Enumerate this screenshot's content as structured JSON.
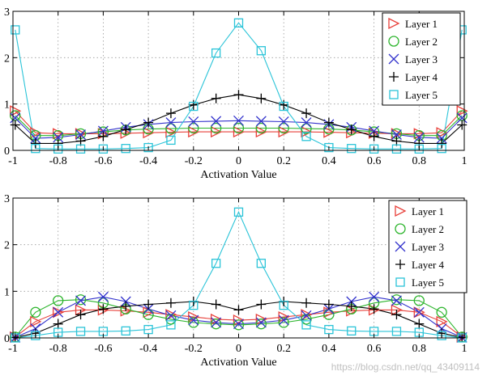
{
  "watermark": "https://blog.csdn.net/qq_43409114",
  "chart_data": [
    {
      "type": "line",
      "xlabel": "Activation Value",
      "ylabel": "",
      "xlim": [
        -1,
        1
      ],
      "ylim": [
        0,
        3
      ],
      "xticks": [
        -1,
        -0.8,
        -0.6,
        -0.4,
        -0.2,
        0,
        0.2,
        0.4,
        0.6,
        0.8,
        1
      ],
      "xtick_labels": [
        "-1",
        "-0.8",
        "-0.6",
        "-0.4",
        "-0.2",
        "0",
        "0.2",
        "0.4",
        "0.6",
        "0.8",
        "1"
      ],
      "yticks": [
        0,
        1,
        2,
        3
      ],
      "ytick_labels": [
        "0",
        "1",
        "2",
        "3"
      ],
      "grid": true,
      "legend_position": "top-right",
      "x": [
        -0.99,
        -0.9,
        -0.8,
        -0.7,
        -0.6,
        -0.5,
        -0.4,
        -0.3,
        -0.2,
        -0.1,
        0,
        0.1,
        0.2,
        0.3,
        0.4,
        0.5,
        0.6,
        0.7,
        0.8,
        0.9,
        0.99
      ],
      "series": [
        {
          "name": "Layer 1",
          "color": "#e8403a",
          "marker": "triangle-right",
          "values": [
            0.85,
            0.38,
            0.36,
            0.36,
            0.36,
            0.37,
            0.38,
            0.39,
            0.4,
            0.4,
            0.4,
            0.4,
            0.4,
            0.4,
            0.39,
            0.38,
            0.37,
            0.36,
            0.36,
            0.38,
            0.85
          ]
        },
        {
          "name": "Layer 2",
          "color": "#2db52d",
          "marker": "circle",
          "values": [
            0.75,
            0.32,
            0.32,
            0.36,
            0.4,
            0.44,
            0.46,
            0.47,
            0.48,
            0.48,
            0.48,
            0.48,
            0.48,
            0.47,
            0.46,
            0.44,
            0.4,
            0.36,
            0.32,
            0.32,
            0.75
          ]
        },
        {
          "name": "Layer 3",
          "color": "#3333cc",
          "marker": "x",
          "values": [
            0.7,
            0.26,
            0.28,
            0.34,
            0.42,
            0.5,
            0.56,
            0.6,
            0.62,
            0.63,
            0.64,
            0.63,
            0.62,
            0.6,
            0.56,
            0.5,
            0.42,
            0.34,
            0.28,
            0.26,
            0.7
          ]
        },
        {
          "name": "Layer 4",
          "color": "#000000",
          "marker": "plus",
          "values": [
            0.55,
            0.15,
            0.15,
            0.2,
            0.3,
            0.45,
            0.6,
            0.8,
            0.98,
            1.12,
            1.2,
            1.12,
            0.98,
            0.8,
            0.6,
            0.45,
            0.3,
            0.2,
            0.15,
            0.15,
            0.55
          ]
        },
        {
          "name": "Layer 5",
          "color": "#2bc4d8",
          "marker": "square",
          "values": [
            2.6,
            0.04,
            0.03,
            0.03,
            0.03,
            0.04,
            0.06,
            0.22,
            0.95,
            2.1,
            2.75,
            2.15,
            0.95,
            0.3,
            0.06,
            0.04,
            0.03,
            0.03,
            0.03,
            0.04,
            2.6
          ]
        }
      ]
    },
    {
      "type": "line",
      "xlabel": "Activation Value",
      "ylabel": "",
      "xlim": [
        -1,
        1
      ],
      "ylim": [
        0,
        3
      ],
      "xticks": [
        -1,
        -0.8,
        -0.6,
        -0.4,
        -0.2,
        0,
        0.2,
        0.4,
        0.6,
        0.8,
        1
      ],
      "xtick_labels": [
        "-1",
        "-0.8",
        "-0.6",
        "-0.4",
        "-0.2",
        "0",
        "0.2",
        "0.4",
        "0.6",
        "0.8",
        "1"
      ],
      "yticks": [
        0,
        1,
        2,
        3
      ],
      "ytick_labels": [
        "0",
        "1",
        "2",
        "3"
      ],
      "grid": true,
      "legend_position": "top-right",
      "x": [
        -0.99,
        -0.9,
        -0.8,
        -0.7,
        -0.6,
        -0.5,
        -0.4,
        -0.3,
        -0.2,
        -0.1,
        0,
        0.1,
        0.2,
        0.3,
        0.4,
        0.5,
        0.6,
        0.7,
        0.8,
        0.9,
        0.99
      ],
      "series": [
        {
          "name": "Layer 1",
          "color": "#e8403a",
          "marker": "triangle-right",
          "values": [
            0.02,
            0.35,
            0.55,
            0.6,
            0.6,
            0.58,
            0.55,
            0.5,
            0.45,
            0.4,
            0.38,
            0.4,
            0.45,
            0.5,
            0.55,
            0.58,
            0.6,
            0.6,
            0.55,
            0.35,
            0.02
          ]
        },
        {
          "name": "Layer 2",
          "color": "#2db52d",
          "marker": "circle",
          "values": [
            0.02,
            0.55,
            0.8,
            0.82,
            0.75,
            0.62,
            0.5,
            0.4,
            0.33,
            0.3,
            0.28,
            0.3,
            0.33,
            0.4,
            0.5,
            0.62,
            0.75,
            0.82,
            0.8,
            0.55,
            0.02
          ]
        },
        {
          "name": "Layer 3",
          "color": "#3333cc",
          "marker": "x",
          "values": [
            0.01,
            0.2,
            0.55,
            0.8,
            0.88,
            0.78,
            0.62,
            0.48,
            0.38,
            0.33,
            0.3,
            0.33,
            0.38,
            0.48,
            0.62,
            0.78,
            0.88,
            0.8,
            0.55,
            0.2,
            0.01
          ]
        },
        {
          "name": "Layer 4",
          "color": "#000000",
          "marker": "plus",
          "values": [
            0.01,
            0.1,
            0.3,
            0.5,
            0.62,
            0.68,
            0.72,
            0.75,
            0.78,
            0.72,
            0.6,
            0.72,
            0.78,
            0.75,
            0.72,
            0.68,
            0.62,
            0.5,
            0.3,
            0.1,
            0.01
          ]
        },
        {
          "name": "Layer 5",
          "color": "#2bc4d8",
          "marker": "square",
          "values": [
            0.0,
            0.05,
            0.12,
            0.14,
            0.14,
            0.15,
            0.18,
            0.28,
            0.7,
            1.6,
            2.7,
            1.6,
            0.7,
            0.28,
            0.18,
            0.15,
            0.14,
            0.14,
            0.12,
            0.05,
            0.0
          ]
        }
      ]
    }
  ]
}
